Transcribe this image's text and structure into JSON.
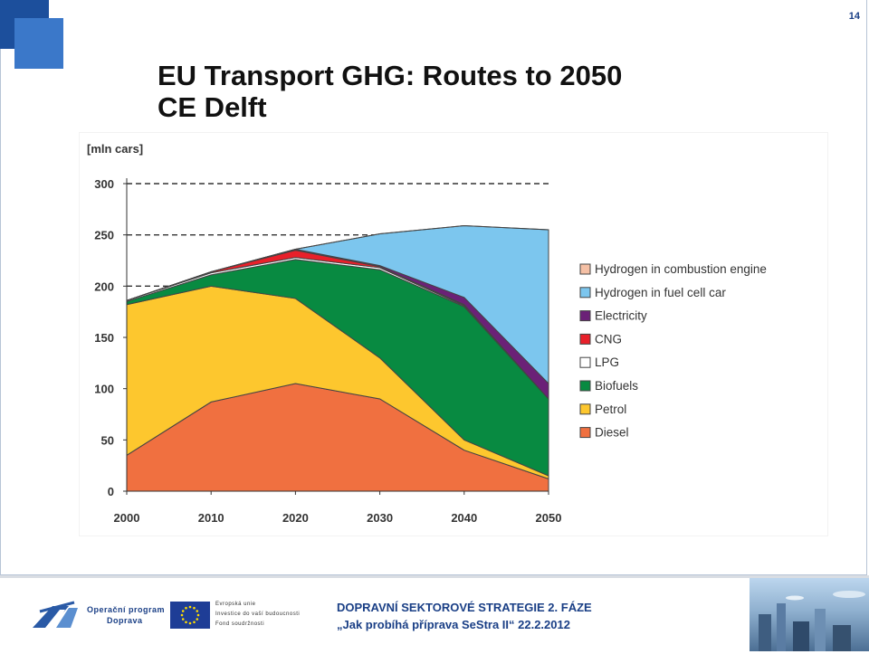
{
  "slide": {
    "page_number": "14",
    "title_line1": "EU Transport GHG: Routes to 2050",
    "title_line2": "CE Delft"
  },
  "footer": {
    "program_line1": "Operační program",
    "program_line2": "Doprava",
    "eu_line1": "Evropská unie",
    "eu_line2": "Investice do vaší budoucnosti",
    "eu_line3": "Fond soudržnosti",
    "strategy_line1": "DOPRAVNÍ SEKTOROVÉ STRATEGIE  2. FÁZE",
    "strategy_line2": "„Jak probíhá příprava SeStra II“  22.2.2012"
  },
  "chart_data": {
    "type": "area",
    "stacked": true,
    "title": "",
    "ylabel": "[mln cars]",
    "xlabel": "",
    "x": [
      2000,
      2010,
      2020,
      2030,
      2040,
      2050
    ],
    "ylim": [
      0,
      300
    ],
    "yticks": [
      0,
      50,
      100,
      150,
      200,
      250,
      300
    ],
    "xticks": [
      2000,
      2010,
      2020,
      2030,
      2040,
      2050
    ],
    "reference_lines": [
      300,
      250,
      200
    ],
    "legend_position": "right",
    "legend_order": [
      "Hydrogen in combustion engine",
      "Hydrogen in fuel cell car",
      "Electricity",
      "CNG",
      "LPG",
      "Biofuels",
      "Petrol",
      "Diesel"
    ],
    "series": [
      {
        "name": "Diesel",
        "color": "#f07040",
        "values": [
          35,
          87,
          105,
          90,
          40,
          12
        ]
      },
      {
        "name": "Petrol",
        "color": "#fdc72e",
        "values": [
          147,
          113,
          83,
          40,
          10,
          3
        ]
      },
      {
        "name": "Biofuels",
        "color": "#088a41",
        "values": [
          3,
          11,
          38,
          86,
          130,
          75
        ]
      },
      {
        "name": "LPG",
        "color": "#ffffff",
        "values": [
          1,
          2,
          2,
          2,
          1,
          0
        ]
      },
      {
        "name": "CNG",
        "color": "#e8202a",
        "values": [
          0,
          1,
          7,
          1,
          1,
          0
        ]
      },
      {
        "name": "Electricity",
        "color": "#6b2177",
        "values": [
          0,
          0,
          1,
          1,
          7,
          15
        ]
      },
      {
        "name": "Hydrogen in fuel cell car",
        "color": "#7cc6ee",
        "values": [
          0,
          0,
          0,
          31,
          70,
          150
        ]
      },
      {
        "name": "Hydrogen in combustion engine",
        "color": "#f5c0a5",
        "values": [
          0,
          0,
          0,
          0,
          0,
          0
        ]
      }
    ]
  }
}
